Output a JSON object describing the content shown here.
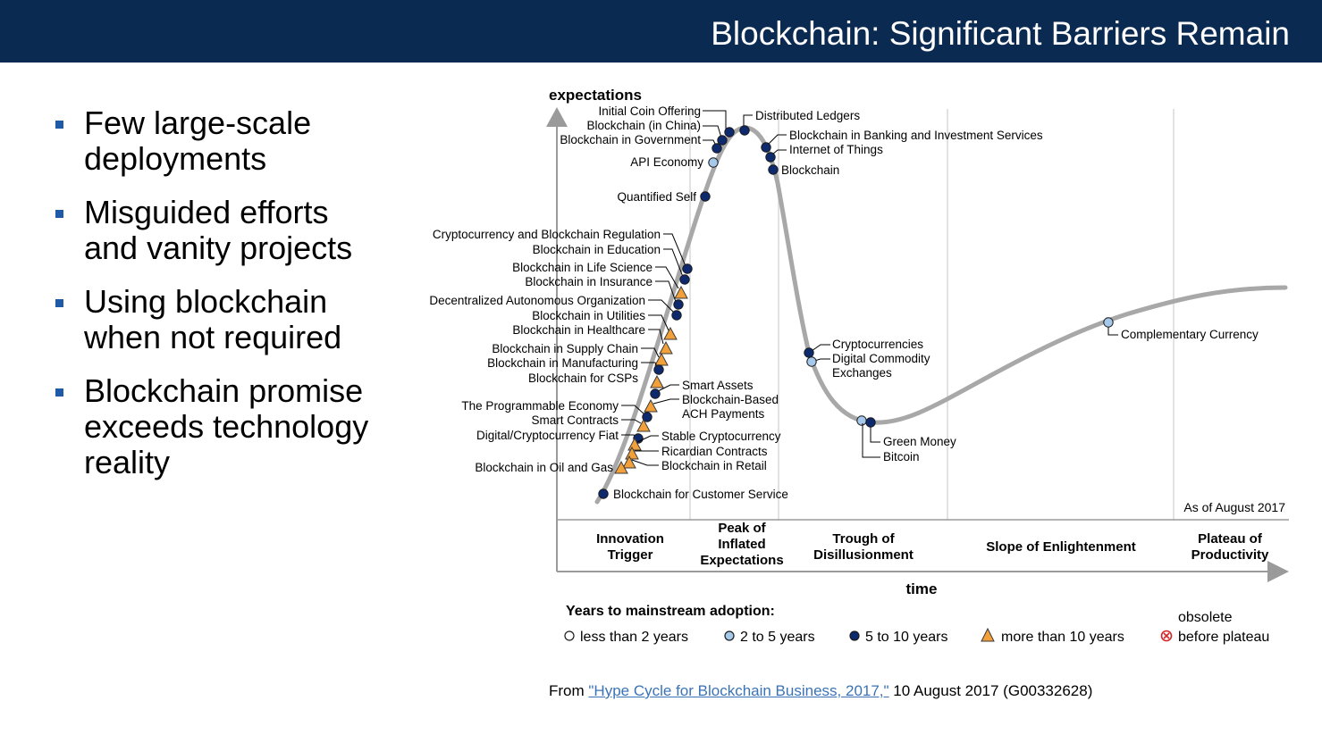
{
  "header": {
    "title": "Blockchain: Significant Barriers Remain"
  },
  "bullets": [
    {
      "lines": [
        "Few large-scale",
        "deployments"
      ]
    },
    {
      "lines": [
        "Misguided efforts",
        "and vanity projects"
      ]
    },
    {
      "lines": [
        "Using blockchain",
        "when not required"
      ]
    },
    {
      "lines": [
        "Blockchain promise",
        "exceeds technology",
        "reality"
      ]
    }
  ],
  "colors": {
    "banner": "#0b2a52",
    "less_than_2": "#ffffff",
    "two_to_five": "#a6c8ea",
    "five_to_ten": "#0e2a6e",
    "more_than_ten": "#f2a03a",
    "obsolete": "#d02828"
  },
  "chart_data": {
    "type": "hype-cycle",
    "ylabel": "expectations",
    "xlabel": "time",
    "note": "As of August 2017",
    "phases": [
      {
        "name": "Innovation\nTrigger"
      },
      {
        "name": "Peak of\nInflated\nExpectations"
      },
      {
        "name": "Trough of\nDisillusionment"
      },
      {
        "name": "Slope of Enlightenment"
      },
      {
        "name": "Plateau of\nProductivity"
      }
    ],
    "legend": {
      "title": "Years to mainstream adoption:",
      "items": [
        {
          "label": "less than 2 years",
          "symbol": "open-circle"
        },
        {
          "label": "2 to 5 years",
          "symbol": "light-circle"
        },
        {
          "label": "5 to 10 years",
          "symbol": "dark-circle"
        },
        {
          "label": "more than 10 years",
          "symbol": "triangle"
        },
        {
          "label": "obsolete\nbefore plateau",
          "symbol": "x-circle"
        }
      ]
    },
    "technologies": [
      {
        "name": "Initial Coin Offering",
        "phase": "Peak of Inflated Expectations",
        "adoption": "5 to 10 years"
      },
      {
        "name": "Blockchain (in China)",
        "phase": "Peak of Inflated Expectations",
        "adoption": "5 to 10 years"
      },
      {
        "name": "Blockchain in Government",
        "phase": "Peak of Inflated Expectations",
        "adoption": "5 to 10 years"
      },
      {
        "name": "API Economy",
        "phase": "Peak of Inflated Expectations",
        "adoption": "2 to 5 years"
      },
      {
        "name": "Quantified Self",
        "phase": "Peak of Inflated Expectations",
        "adoption": "5 to 10 years"
      },
      {
        "name": "Distributed Ledgers",
        "phase": "Peak of Inflated Expectations",
        "adoption": "5 to 10 years"
      },
      {
        "name": "Blockchain in Banking and Investment Services",
        "phase": "Peak of Inflated Expectations",
        "adoption": "5 to 10 years"
      },
      {
        "name": "Internet of Things",
        "phase": "Peak of Inflated Expectations",
        "adoption": "5 to 10 years"
      },
      {
        "name": "Blockchain",
        "phase": "Peak of Inflated Expectations",
        "adoption": "5 to 10 years"
      },
      {
        "name": "Cryptocurrency and Blockchain Regulation",
        "phase": "Innovation Trigger",
        "adoption": "5 to 10 years"
      },
      {
        "name": "Blockchain in Education",
        "phase": "Innovation Trigger",
        "adoption": "5 to 10 years"
      },
      {
        "name": "Blockchain in Life Science",
        "phase": "Innovation Trigger",
        "adoption": "more than 10 years"
      },
      {
        "name": "Blockchain in Insurance",
        "phase": "Innovation Trigger",
        "adoption": "5 to 10 years"
      },
      {
        "name": "Decentralized Autonomous Organization",
        "phase": "Innovation Trigger",
        "adoption": "5 to 10 years"
      },
      {
        "name": "Blockchain in Utilities",
        "phase": "Innovation Trigger",
        "adoption": "more than 10 years"
      },
      {
        "name": "Blockchain in Healthcare",
        "phase": "Innovation Trigger",
        "adoption": "more than 10 years"
      },
      {
        "name": "Blockchain in Supply Chain",
        "phase": "Innovation Trigger",
        "adoption": "more than 10 years"
      },
      {
        "name": "Blockchain in Manufacturing",
        "phase": "Innovation Trigger",
        "adoption": "5 to 10 years"
      },
      {
        "name": "Blockchain for CSPs",
        "phase": "Innovation Trigger",
        "adoption": "more than 10 years"
      },
      {
        "name": "Smart Assets",
        "phase": "Innovation Trigger",
        "adoption": "5 to 10 years"
      },
      {
        "name": "Blockchain-Based\nACH Payments",
        "phase": "Innovation Trigger",
        "adoption": "more than 10 years"
      },
      {
        "name": "The Programmable Economy",
        "phase": "Innovation Trigger",
        "adoption": "5 to 10 years"
      },
      {
        "name": "Smart Contracts",
        "phase": "Innovation Trigger",
        "adoption": "more than 10 years"
      },
      {
        "name": "Digital/Cryptocurrency Fiat",
        "phase": "Innovation Trigger",
        "adoption": "5 to 10 years"
      },
      {
        "name": "Stable Cryptocurrency",
        "phase": "Innovation Trigger",
        "adoption": "more than 10 years"
      },
      {
        "name": "Ricardian Contracts",
        "phase": "Innovation Trigger",
        "adoption": "more than 10 years"
      },
      {
        "name": "Blockchain in Retail",
        "phase": "Innovation Trigger",
        "adoption": "more than 10 years"
      },
      {
        "name": "Blockchain in Oil and Gas",
        "phase": "Innovation Trigger",
        "adoption": "more than 10 years"
      },
      {
        "name": "Blockchain for Customer Service",
        "phase": "Innovation Trigger",
        "adoption": "5 to 10 years"
      },
      {
        "name": "Cryptocurrencies",
        "phase": "Trough of Disillusionment",
        "adoption": "5 to 10 years"
      },
      {
        "name": "Digital Commodity\nExchanges",
        "phase": "Trough of Disillusionment",
        "adoption": "2 to 5 years"
      },
      {
        "name": "Green Money",
        "phase": "Trough of Disillusionment",
        "adoption": "2 to 5 years"
      },
      {
        "name": "Bitcoin",
        "phase": "Trough of Disillusionment",
        "adoption": "5 to 10 years"
      },
      {
        "name": "Complementary Currency",
        "phase": "Slope of Enlightenment",
        "adoption": "2 to 5 years"
      }
    ]
  },
  "source": {
    "prefix": "From ",
    "link_text": "\"Hype Cycle for Blockchain Business, 2017,\"",
    "suffix": " 10 August 2017 (G00332628)"
  }
}
